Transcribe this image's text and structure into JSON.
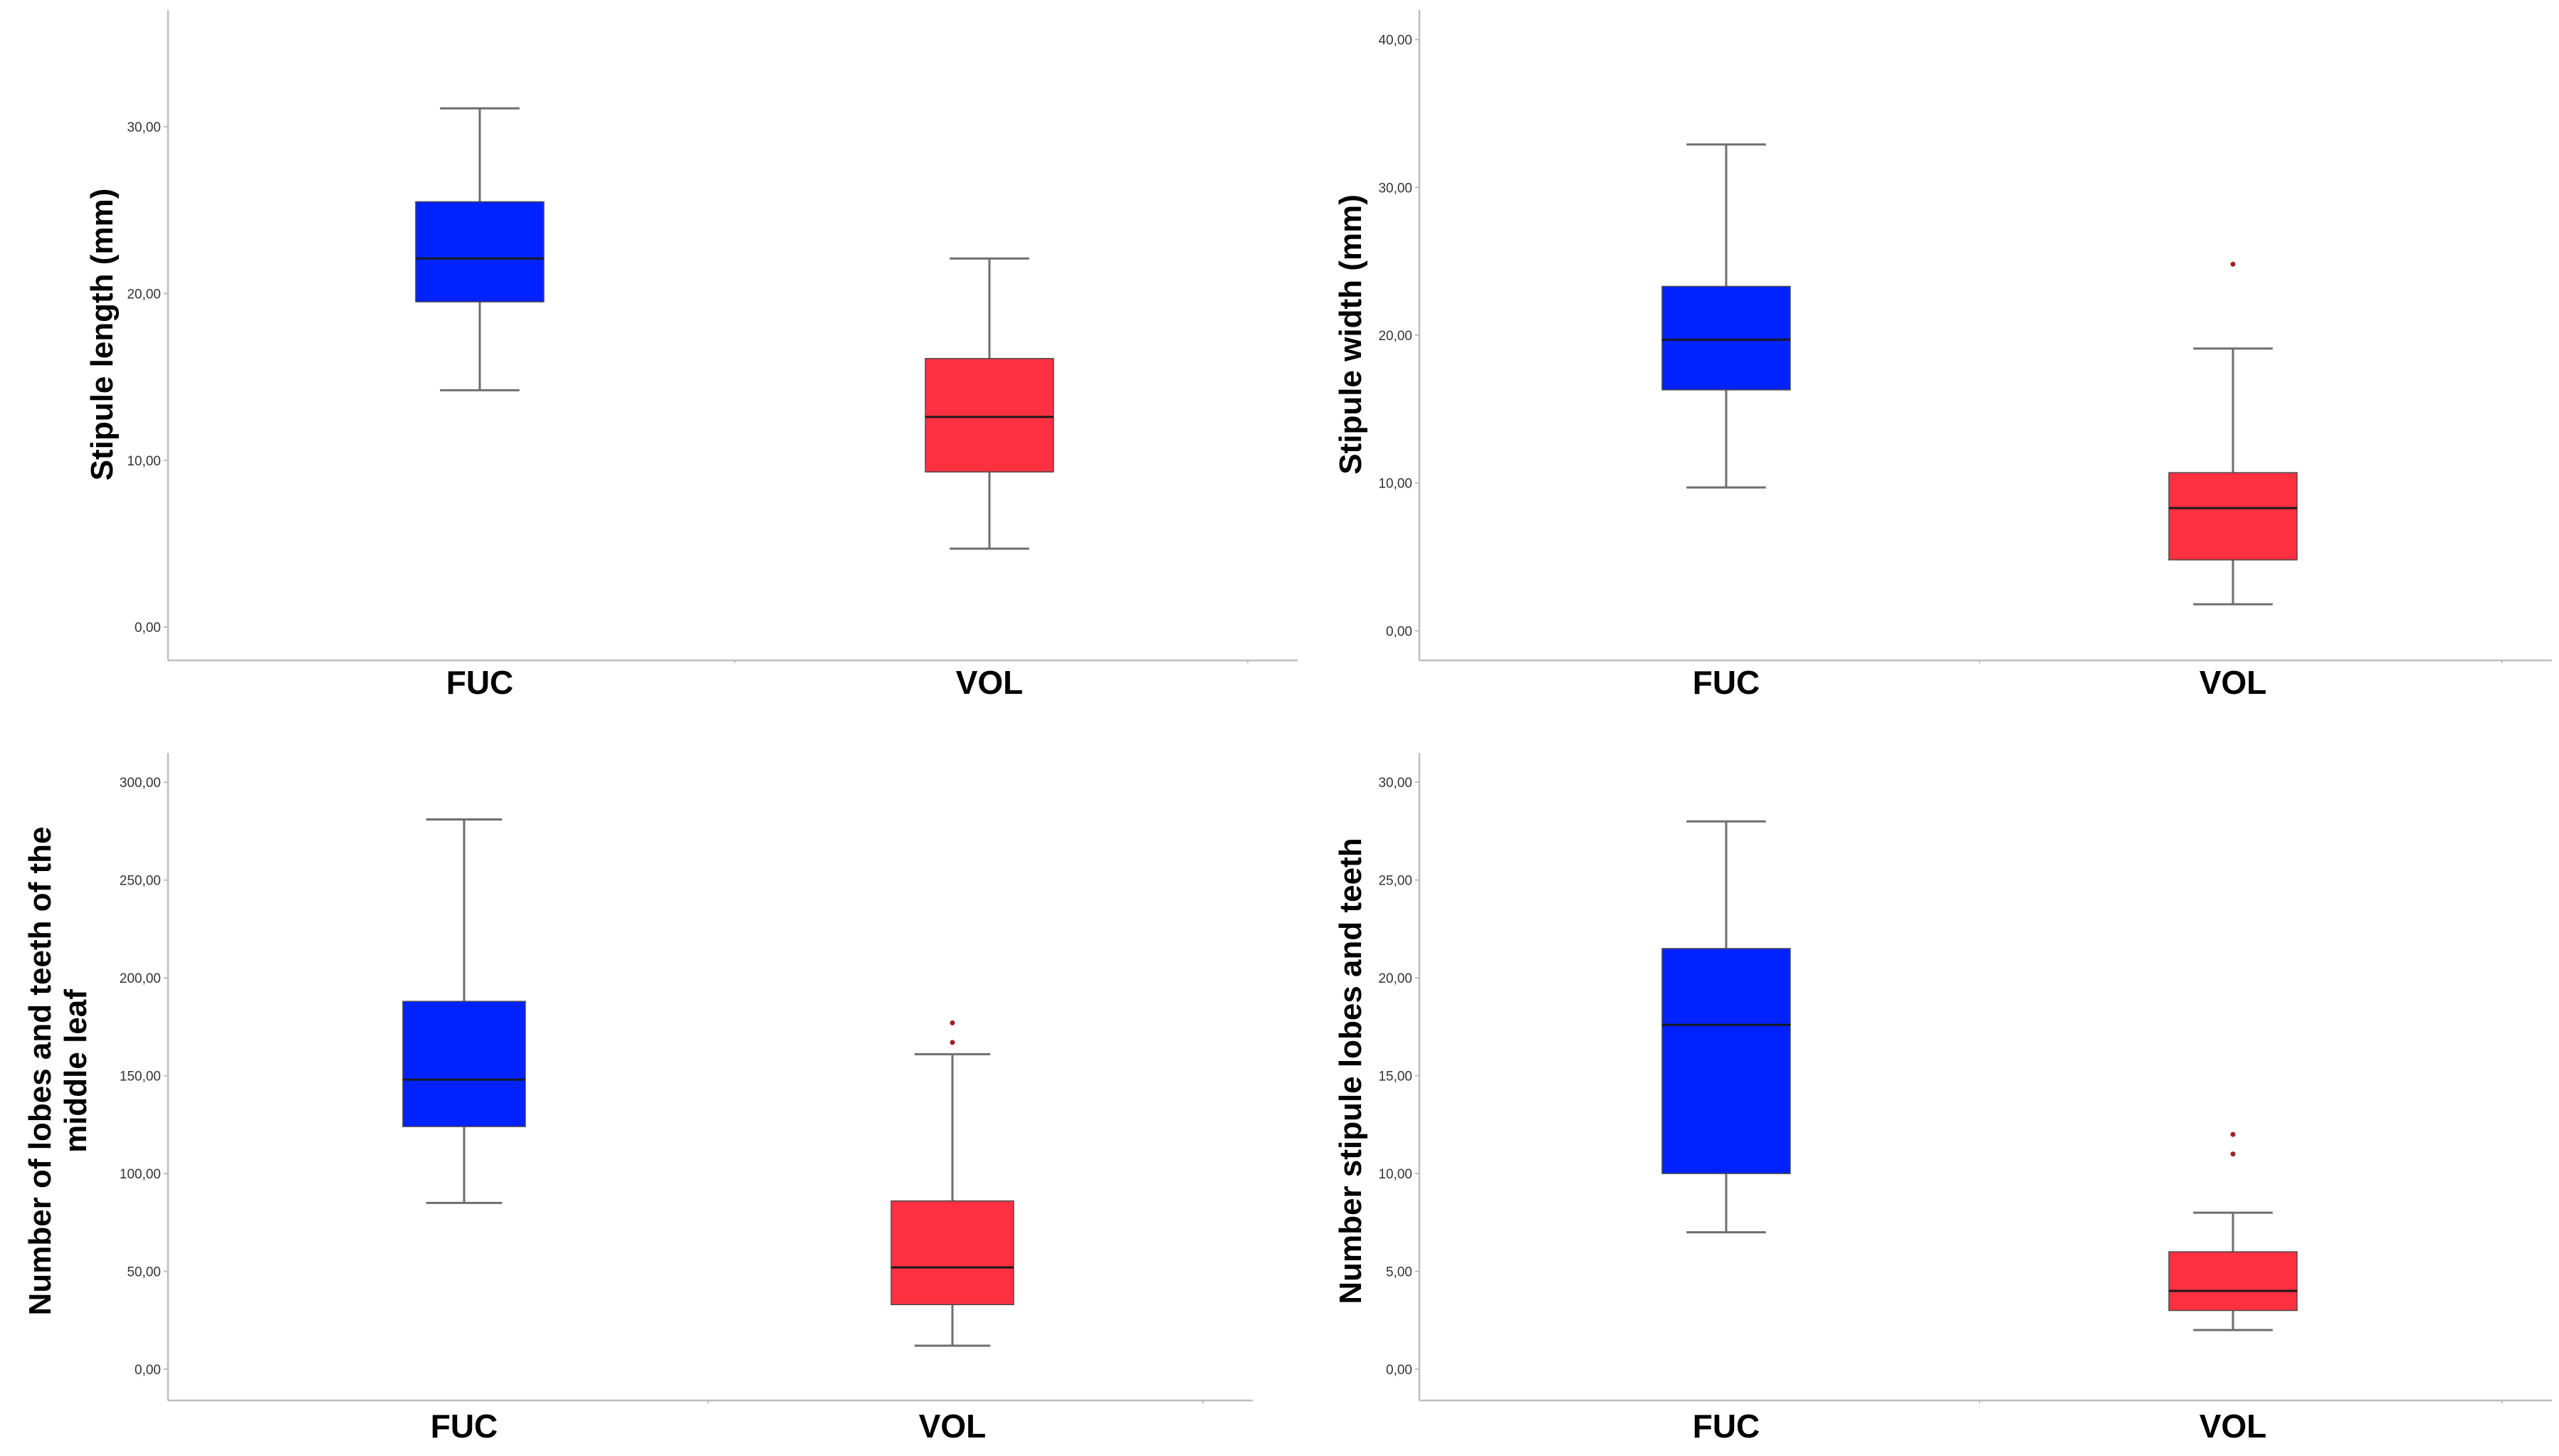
{
  "colors": {
    "FUC": "#0022ff",
    "VOL": "#ff3040",
    "outlier": "#a0202a",
    "axis": "#bdbdbd",
    "whisker": "#6e6e6e"
  },
  "chart_data": [
    {
      "type": "boxplot",
      "ylabel": [
        "Stipule length (mm)"
      ],
      "ylim": [
        -2,
        37
      ],
      "yticks": [
        0,
        10,
        20,
        30
      ],
      "ytick_labels": [
        "0,00",
        "10,00",
        "20,00",
        "30,00"
      ],
      "categories": [
        "FUC",
        "VOL"
      ],
      "boxes": [
        {
          "name": "FUC",
          "min": 14.2,
          "q1": 19.5,
          "median": 22.1,
          "q3": 25.5,
          "max": 31.1,
          "outliers": []
        },
        {
          "name": "VOL",
          "min": 4.7,
          "q1": 9.3,
          "median": 12.6,
          "q3": 16.1,
          "max": 22.1,
          "outliers": []
        }
      ]
    },
    {
      "type": "boxplot",
      "ylabel": [
        "Stipule width (mm)"
      ],
      "ylim": [
        -2,
        42
      ],
      "yticks": [
        0,
        10,
        20,
        30,
        40
      ],
      "ytick_labels": [
        "0,00",
        "10,00",
        "20,00",
        "30,00",
        "40,00"
      ],
      "categories": [
        "FUC",
        "VOL"
      ],
      "boxes": [
        {
          "name": "FUC",
          "min": 9.7,
          "q1": 16.3,
          "median": 19.7,
          "q3": 23.3,
          "max": 32.9,
          "outliers": []
        },
        {
          "name": "VOL",
          "min": 1.8,
          "q1": 4.8,
          "median": 8.3,
          "q3": 10.7,
          "max": 19.1,
          "outliers": [
            24.8
          ]
        }
      ]
    },
    {
      "type": "boxplot",
      "ylabel": [
        "Number of lobes and teeth of the",
        "middle leaf"
      ],
      "ylim": [
        -16,
        315
      ],
      "yticks": [
        0,
        50,
        100,
        150,
        200,
        250,
        300
      ],
      "ytick_labels": [
        "0,00",
        "50,00",
        "100,00",
        "150,00",
        "200,00",
        "250,00",
        "300,00"
      ],
      "categories": [
        "FUC",
        "VOL"
      ],
      "boxes": [
        {
          "name": "FUC",
          "min": 85,
          "q1": 124,
          "median": 148,
          "q3": 188,
          "max": 281,
          "outliers": []
        },
        {
          "name": "VOL",
          "min": 12,
          "q1": 33,
          "median": 52,
          "q3": 86,
          "max": 161,
          "outliers": [
            167,
            177
          ]
        }
      ]
    },
    {
      "type": "boxplot",
      "ylabel": [
        "Number stipule lobes and teeth"
      ],
      "ylim": [
        -1.6,
        31.5
      ],
      "yticks": [
        0,
        5,
        10,
        15,
        20,
        25,
        30
      ],
      "ytick_labels": [
        "0,00",
        "5,00",
        "10,00",
        "15,00",
        "20,00",
        "25,00",
        "30,00"
      ],
      "categories": [
        "FUC",
        "VOL"
      ],
      "boxes": [
        {
          "name": "FUC",
          "min": 7,
          "q1": 10,
          "median": 17.6,
          "q3": 21.5,
          "max": 28,
          "outliers": []
        },
        {
          "name": "VOL",
          "min": 2,
          "q1": 3,
          "median": 4,
          "q3": 6,
          "max": 8,
          "outliers": [
            11,
            12
          ]
        }
      ]
    }
  ]
}
